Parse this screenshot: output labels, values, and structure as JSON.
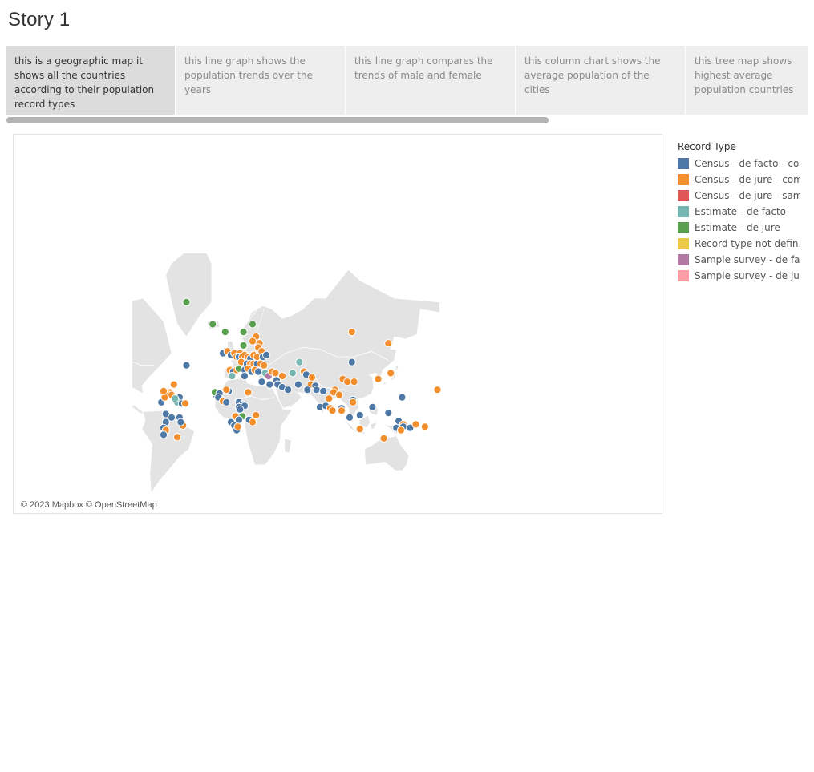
{
  "story": {
    "title": "Story 1"
  },
  "navigator": {
    "points": [
      {
        "text": "this is a geographic map it shows all the countries according to their population record types",
        "active": true
      },
      {
        "text": "this line graph shows the population trends over the years",
        "active": false
      },
      {
        "text": "this line graph compares the trends of male and female",
        "active": false
      },
      {
        "text": "this column chart shows  the average population of the cities",
        "active": false
      },
      {
        "text": "this tree map shows highest average population countries",
        "active": false
      }
    ]
  },
  "map": {
    "attribution": "© 2023 Mapbox © OpenStreetMap",
    "land_color": "#e3e3e3",
    "points": [
      {
        "c": "green",
        "lon": -42,
        "lat": 72
      },
      {
        "c": "green",
        "lon": -19,
        "lat": 65
      },
      {
        "c": "green",
        "lon": -8,
        "lat": 62
      },
      {
        "c": "green",
        "lon": 8,
        "lat": 62
      },
      {
        "c": "green",
        "lon": 16,
        "lat": 65
      },
      {
        "c": "orange",
        "lon": 19,
        "lat": 60
      },
      {
        "c": "orange",
        "lon": 16,
        "lat": 58
      },
      {
        "c": "orange",
        "lon": 22,
        "lat": 57
      },
      {
        "c": "green",
        "lon": 8,
        "lat": 56
      },
      {
        "c": "orange",
        "lon": 21,
        "lat": 55
      },
      {
        "c": "orange",
        "lon": 24,
        "lat": 53
      },
      {
        "c": "blue",
        "lon": -10,
        "lat": 52
      },
      {
        "c": "orange",
        "lon": -6,
        "lat": 53
      },
      {
        "c": "blue",
        "lon": -3,
        "lat": 51
      },
      {
        "c": "orange",
        "lon": 0,
        "lat": 52
      },
      {
        "c": "orange",
        "lon": 2,
        "lat": 50
      },
      {
        "c": "orange",
        "lon": 5,
        "lat": 52
      },
      {
        "c": "blue",
        "lon": 4,
        "lat": 50
      },
      {
        "c": "orange",
        "lon": 7,
        "lat": 50
      },
      {
        "c": "orange",
        "lon": 9,
        "lat": 51
      },
      {
        "c": "orange",
        "lon": 12,
        "lat": 50
      },
      {
        "c": "blue",
        "lon": 14,
        "lat": 49
      },
      {
        "c": "orange",
        "lon": 17,
        "lat": 51
      },
      {
        "c": "orange",
        "lon": 20,
        "lat": 50
      },
      {
        "c": "blue",
        "lon": 25,
        "lat": 50
      },
      {
        "c": "blue",
        "lon": 28,
        "lat": 51
      },
      {
        "c": "orange",
        "lon": 6,
        "lat": 47
      },
      {
        "c": "blue",
        "lon": 11,
        "lat": 46
      },
      {
        "c": "orange",
        "lon": 14,
        "lat": 46
      },
      {
        "c": "orange",
        "lon": 17,
        "lat": 46
      },
      {
        "c": "blue",
        "lon": 20,
        "lat": 46
      },
      {
        "c": "orange",
        "lon": 23,
        "lat": 46
      },
      {
        "c": "orange",
        "lon": 26,
        "lat": 45
      },
      {
        "c": "orange",
        "lon": -4,
        "lat": 42
      },
      {
        "c": "blue",
        "lon": -1,
        "lat": 41
      },
      {
        "c": "orange",
        "lon": 2,
        "lat": 42
      },
      {
        "c": "green",
        "lon": 4,
        "lat": 43
      },
      {
        "c": "blue",
        "lon": 9,
        "lat": 42
      },
      {
        "c": "orange",
        "lon": 12,
        "lat": 43
      },
      {
        "c": "blue",
        "lon": 15,
        "lat": 41
      },
      {
        "c": "orange",
        "lon": 18,
        "lat": 42
      },
      {
        "c": "blue",
        "lon": 21,
        "lat": 41
      },
      {
        "c": "teal",
        "lon": -2,
        "lat": 38
      },
      {
        "c": "blue",
        "lon": 9,
        "lat": 38
      },
      {
        "c": "teal",
        "lon": 27,
        "lat": 40
      },
      {
        "c": "purple",
        "lon": 30,
        "lat": 38
      },
      {
        "c": "orange",
        "lon": 33,
        "lat": 41
      },
      {
        "c": "orange",
        "lon": 36,
        "lat": 40
      },
      {
        "c": "teal",
        "lon": 57,
        "lat": 47
      },
      {
        "c": "orange",
        "lon": 61,
        "lat": 41
      },
      {
        "c": "blue",
        "lon": 63,
        "lat": 39
      },
      {
        "c": "teal",
        "lon": 51,
        "lat": 40
      },
      {
        "c": "orange",
        "lon": 42,
        "lat": 38
      },
      {
        "c": "blue",
        "lon": 37,
        "lat": 35
      },
      {
        "c": "blue",
        "lon": 24,
        "lat": 34
      },
      {
        "c": "blue",
        "lon": 31,
        "lat": 32
      },
      {
        "c": "blue",
        "lon": 38,
        "lat": 32
      },
      {
        "c": "blue",
        "lon": 42,
        "lat": 30
      },
      {
        "c": "blue",
        "lon": 47,
        "lat": 28
      },
      {
        "c": "blue",
        "lon": 56,
        "lat": 32
      },
      {
        "c": "orange",
        "lon": 68,
        "lat": 37
      },
      {
        "c": "orange",
        "lon": 67,
        "lat": 32
      },
      {
        "c": "blue",
        "lon": 71,
        "lat": 31
      },
      {
        "c": "blue",
        "lon": 72,
        "lat": 28
      },
      {
        "c": "blue",
        "lon": 78,
        "lat": 27
      },
      {
        "c": "orange",
        "lon": 95,
        "lat": 36
      },
      {
        "c": "orange",
        "lon": 99,
        "lat": 34
      },
      {
        "c": "orange",
        "lon": 105,
        "lat": 34
      },
      {
        "c": "blue",
        "lon": 103,
        "lat": 47
      },
      {
        "c": "orange",
        "lon": 103,
        "lat": 62
      },
      {
        "c": "blue",
        "lon": 64,
        "lat": 28
      },
      {
        "c": "orange",
        "lon": 88,
        "lat": 28
      },
      {
        "c": "orange",
        "lon": 87,
        "lat": 26
      },
      {
        "c": "orange",
        "lon": 92,
        "lat": 24
      },
      {
        "c": "orange",
        "lon": 83,
        "lat": 21
      },
      {
        "c": "blue",
        "lon": 75,
        "lat": 14
      },
      {
        "c": "blue",
        "lon": 80,
        "lat": 15
      },
      {
        "c": "orange",
        "lon": 84,
        "lat": 13
      },
      {
        "c": "orange",
        "lon": 86,
        "lat": 11
      },
      {
        "c": "blue",
        "lon": 104,
        "lat": 20
      },
      {
        "c": "orange",
        "lon": 104,
        "lat": 18
      },
      {
        "c": "blue",
        "lon": 121,
        "lat": 14
      },
      {
        "c": "blue",
        "lon": 94,
        "lat": 13
      },
      {
        "c": "orange",
        "lon": 94,
        "lat": 11
      },
      {
        "c": "blue",
        "lon": 101,
        "lat": 5
      },
      {
        "c": "blue",
        "lon": 110,
        "lat": 7
      },
      {
        "c": "orange",
        "lon": 135,
        "lat": 57
      },
      {
        "c": "orange",
        "lon": 137,
        "lat": 40
      },
      {
        "c": "blue",
        "lon": 147,
        "lat": 22
      },
      {
        "c": "blue",
        "lon": 135,
        "lat": 9
      },
      {
        "c": "orange",
        "lon": 110,
        "lat": -5
      },
      {
        "c": "blue",
        "lon": 142,
        "lat": -4
      },
      {
        "c": "blue",
        "lon": 144,
        "lat": 2
      },
      {
        "c": "orange",
        "lon": 148,
        "lat": -1
      },
      {
        "c": "blue",
        "lon": 148,
        "lat": -3
      },
      {
        "c": "orange",
        "lon": 146,
        "lat": -6
      },
      {
        "c": "blue",
        "lon": 154,
        "lat": -4
      },
      {
        "c": "orange",
        "lon": 159,
        "lat": -1
      },
      {
        "c": "orange",
        "lon": 167,
        "lat": -3
      },
      {
        "c": "orange",
        "lon": 131,
        "lat": -13
      },
      {
        "c": "blue",
        "lon": -42,
        "lat": 45
      },
      {
        "c": "orange",
        "lon": -53,
        "lat": 32
      },
      {
        "c": "orange",
        "lon": -57,
        "lat": 26
      },
      {
        "c": "orange",
        "lon": -60,
        "lat": 26
      },
      {
        "c": "orange",
        "lon": -55,
        "lat": 24
      },
      {
        "c": "blue",
        "lon": -48,
        "lat": 22
      },
      {
        "c": "teal",
        "lon": -50,
        "lat": 18
      },
      {
        "c": "blue",
        "lon": -46,
        "lat": 17
      },
      {
        "c": "orange",
        "lon": -43,
        "lat": 17
      },
      {
        "c": "blue",
        "lon": -64,
        "lat": 18
      },
      {
        "c": "blue",
        "lon": -60,
        "lat": 8
      },
      {
        "c": "blue",
        "lon": -55,
        "lat": 5
      },
      {
        "c": "orange",
        "lon": -45,
        "lat": -2
      },
      {
        "c": "orange",
        "lon": -50,
        "lat": -12
      },
      {
        "c": "orange",
        "lon": -61,
        "lat": 22
      },
      {
        "c": "orange",
        "lon": -62,
        "lat": 27
      },
      {
        "c": "blue",
        "lon": -5,
        "lat": 27
      },
      {
        "c": "orange",
        "lon": -7,
        "lat": 28
      },
      {
        "c": "blue",
        "lon": -16,
        "lat": 24
      },
      {
        "c": "green",
        "lon": -17,
        "lat": 26
      },
      {
        "c": "blue",
        "lon": -13,
        "lat": 25
      },
      {
        "c": "blue",
        "lon": -14,
        "lat": 22
      },
      {
        "c": "orange",
        "lon": -10,
        "lat": 19
      },
      {
        "c": "blue",
        "lon": -7,
        "lat": 18
      },
      {
        "c": "blue",
        "lon": 4,
        "lat": 18
      },
      {
        "c": "blue",
        "lon": 7,
        "lat": 16
      },
      {
        "c": "blue",
        "lon": 4,
        "lat": 14
      },
      {
        "c": "blue",
        "lon": 9,
        "lat": 15
      },
      {
        "c": "blue",
        "lon": 5,
        "lat": 12
      },
      {
        "c": "orange",
        "lon": 12,
        "lat": 26
      },
      {
        "c": "orange",
        "lon": 19,
        "lat": 7
      },
      {
        "c": "green",
        "lon": 7,
        "lat": 6
      },
      {
        "c": "orange",
        "lon": 1,
        "lat": 6
      },
      {
        "c": "blue",
        "lon": 4,
        "lat": 3
      },
      {
        "c": "blue",
        "lon": -3,
        "lat": 1
      },
      {
        "c": "blue",
        "lon": 0,
        "lat": -2
      },
      {
        "c": "blue",
        "lon": 2,
        "lat": -6
      },
      {
        "c": "orange",
        "lon": 3,
        "lat": -3
      },
      {
        "c": "blue",
        "lon": 13,
        "lat": 3
      },
      {
        "c": "orange",
        "lon": 16,
        "lat": 1
      },
      {
        "c": "blue",
        "lon": -48,
        "lat": 5
      },
      {
        "c": "blue",
        "lon": -47,
        "lat": 1
      },
      {
        "c": "orange",
        "lon": 126,
        "lat": 36
      },
      {
        "c": "teal",
        "lon": -52,
        "lat": 21
      },
      {
        "c": "blue",
        "lon": -60,
        "lat": 1
      },
      {
        "c": "blue",
        "lon": -62,
        "lat": -4
      },
      {
        "c": "orange",
        "lon": -60,
        "lat": -6
      },
      {
        "c": "blue",
        "lon": -62,
        "lat": -10
      },
      {
        "c": "orange",
        "lon": 178,
        "lat": 28
      },
      {
        "c": "orange",
        "lon": -178,
        "lat": 29
      },
      {
        "c": "teal",
        "lon": -177,
        "lat": 21
      },
      {
        "c": "blue",
        "lon": -175,
        "lat": 20
      },
      {
        "c": "orange",
        "lon": -173,
        "lat": 20
      },
      {
        "c": "orange",
        "lon": -175,
        "lat": 18
      },
      {
        "c": "blue",
        "lon": -173,
        "lat": 11
      },
      {
        "c": "blue",
        "lon": -170,
        "lat": 7
      },
      {
        "c": "blue",
        "lon": -172,
        "lat": 2
      },
      {
        "c": "orange",
        "lon": -178,
        "lat": 24
      },
      {
        "c": "blue",
        "lon": -180,
        "lat": -1
      }
    ]
  },
  "legend": {
    "title": "Record Type",
    "items": [
      {
        "key": "blue",
        "label": "Census - de facto - co..",
        "color": "#4e79a7"
      },
      {
        "key": "orange",
        "label": "Census - de jure - com..",
        "color": "#f28e2b"
      },
      {
        "key": "red",
        "label": "Census - de jure - sam..",
        "color": "#e15759"
      },
      {
        "key": "teal",
        "label": "Estimate - de facto",
        "color": "#76b7b2"
      },
      {
        "key": "green",
        "label": "Estimate - de jure",
        "color": "#59a14f"
      },
      {
        "key": "yellow",
        "label": "Record type not defin..",
        "color": "#edc948"
      },
      {
        "key": "purple",
        "label": "Sample survey - de fa..",
        "color": "#b07aa1"
      },
      {
        "key": "pink",
        "label": "Sample survey - de ju..",
        "color": "#ff9da7"
      }
    ]
  }
}
